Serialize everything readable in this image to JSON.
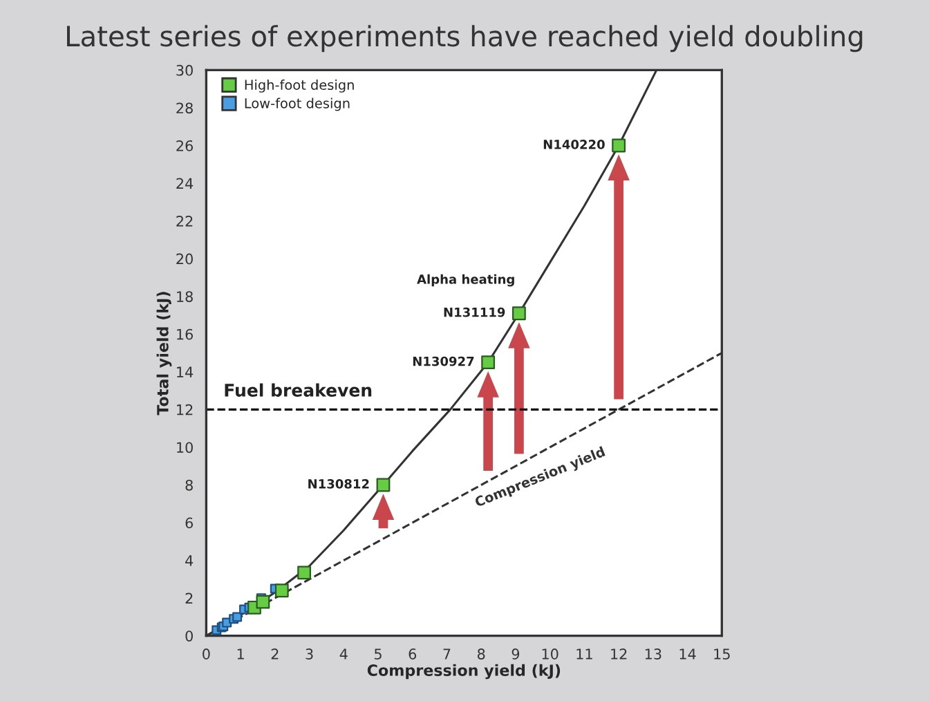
{
  "chart_data": {
    "type": "scatter",
    "title": "Latest series of experiments have reached yield doubling",
    "xlabel": "Compression yield (kJ)",
    "ylabel": "Total yield (kJ)",
    "xlim": [
      0,
      15
    ],
    "xticks": [
      0,
      1,
      2,
      3,
      4,
      5,
      6,
      7,
      8,
      9,
      10,
      11,
      12,
      13,
      14,
      15
    ],
    "ylim": [
      0,
      30
    ],
    "yticks": [
      0,
      2,
      4,
      6,
      8,
      10,
      12,
      14,
      16,
      18,
      20,
      22,
      24,
      26,
      28,
      30
    ],
    "grid": false,
    "legend": "top left",
    "marker": "square",
    "series": [
      {
        "name": "High-foot design",
        "color": "#66cc44",
        "x": [
          1.4,
          1.65,
          2.2,
          2.85,
          5.15,
          8.2,
          9.1,
          12.0
        ],
        "values": [
          1.5,
          1.8,
          2.4,
          3.35,
          8.0,
          14.5,
          17.1,
          26.0
        ]
      },
      {
        "name": "Low-foot design",
        "color": "#4a9de0",
        "x": [
          0.3,
          0.45,
          0.5,
          0.6,
          0.8,
          0.9,
          1.1,
          1.25,
          1.6,
          2.0
        ],
        "values": [
          0.3,
          0.45,
          0.5,
          0.7,
          0.9,
          1.0,
          1.4,
          1.5,
          2.0,
          2.5
        ]
      },
      {
        "type": "line",
        "color": "#333333",
        "line_style": "solid",
        "marker": "none",
        "x": [
          0,
          1,
          2,
          3,
          4,
          5.15,
          6,
          7.1,
          8.2,
          9.1,
          10,
          11,
          12,
          13.1
        ],
        "values": [
          0,
          1.1,
          2.3,
          3.7,
          5.6,
          8.0,
          9.8,
          12.0,
          14.5,
          17.1,
          19.8,
          22.8,
          26.0,
          30.0
        ]
      },
      {
        "type": "line",
        "name": "Compression yield",
        "color": "#333333",
        "line_style": "dashed",
        "marker": "none",
        "x": [
          0,
          15
        ],
        "values": [
          0,
          15
        ]
      }
    ],
    "ref_lines": [
      {
        "axis": "y",
        "value": 12,
        "label": "Fuel breakeven",
        "color": "#111111",
        "line_style": "dashed"
      }
    ],
    "annotations": [
      {
        "text": "N130812",
        "x": 5.15,
        "y": 8.0
      },
      {
        "text": "N130927",
        "x": 8.2,
        "y": 14.5
      },
      {
        "text": "N131119",
        "x": 9.1,
        "y": 17.1
      },
      {
        "text": "Alpha heating",
        "x": 9.1,
        "y": 17.1
      },
      {
        "text": "N140220",
        "x": 12.0,
        "y": 26.0
      }
    ]
  }
}
